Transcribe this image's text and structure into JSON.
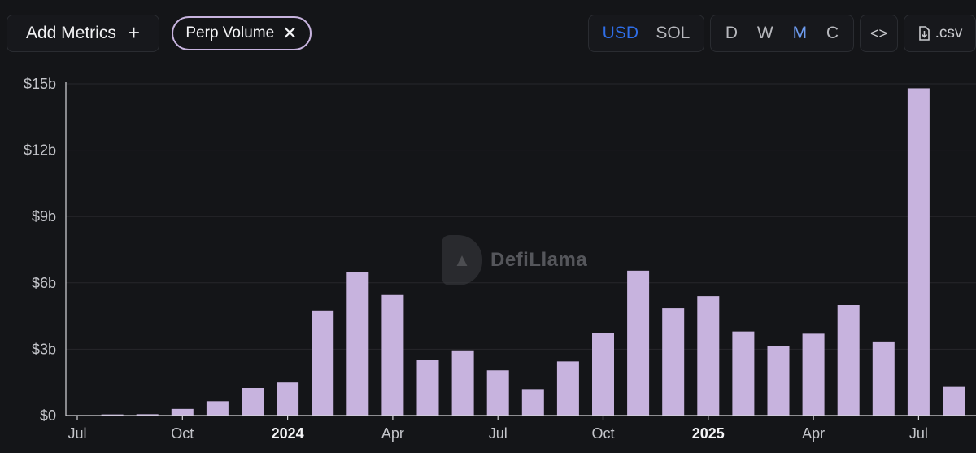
{
  "toolbar": {
    "add_metrics_label": "Add Metrics",
    "add_icon": "+",
    "metric_label": "Perp Volume",
    "remove_icon": "✕",
    "currency_options": [
      "USD",
      "SOL"
    ],
    "currency_selected": "USD",
    "period_options": [
      "D",
      "W",
      "M",
      "C"
    ],
    "period_selected": "M",
    "embed_icon": "<>",
    "csv_label": ".csv"
  },
  "watermark": "DefiLlama",
  "colors": {
    "background": "#141518",
    "bar": "#c7b3de",
    "grid": "#26272b",
    "active_currency": "#2f6ee8"
  },
  "chart_data": {
    "type": "bar",
    "series": [
      {
        "values": [
          0.01,
          0.05,
          0.06,
          0.3,
          0.65,
          1.25,
          1.5,
          4.75,
          6.5,
          5.45,
          2.5,
          2.95,
          2.05,
          1.2,
          2.45,
          3.75,
          6.55,
          4.85,
          5.4,
          3.8,
          3.15,
          3.7,
          5.0,
          3.35,
          14.8,
          1.3
        ]
      }
    ],
    "categories": [
      "2023-07",
      "2023-08",
      "2023-09",
      "2023-10",
      "2023-11",
      "2023-12",
      "2024-01",
      "2024-02",
      "2024-03",
      "2024-04",
      "2024-05",
      "2024-06",
      "2024-07",
      "2024-08",
      "2024-09",
      "2024-10",
      "2024-11",
      "2024-12",
      "2025-01",
      "2025-02",
      "2025-03",
      "2025-04",
      "2025-05",
      "2025-06",
      "2025-07",
      "2025-08"
    ],
    "unit": "billion USD",
    "ylim": [
      0,
      15
    ],
    "y_ticks": [
      {
        "value": 0,
        "label": "$0"
      },
      {
        "value": 3,
        "label": "$3b"
      },
      {
        "value": 6,
        "label": "$6b"
      },
      {
        "value": 9,
        "label": "$9b"
      },
      {
        "value": 12,
        "label": "$12b"
      },
      {
        "value": 15,
        "label": "$15b"
      }
    ],
    "x_ticks": [
      {
        "index": 0,
        "label": "Jul",
        "bold": false
      },
      {
        "index": 3,
        "label": "Oct",
        "bold": false
      },
      {
        "index": 6,
        "label": "2024",
        "bold": true
      },
      {
        "index": 9,
        "label": "Apr",
        "bold": false
      },
      {
        "index": 12,
        "label": "Jul",
        "bold": false
      },
      {
        "index": 15,
        "label": "Oct",
        "bold": false
      },
      {
        "index": 18,
        "label": "2025",
        "bold": true
      },
      {
        "index": 21,
        "label": "Apr",
        "bold": false
      },
      {
        "index": 24,
        "label": "Jul",
        "bold": false
      }
    ],
    "grid": true,
    "legend": "none"
  }
}
